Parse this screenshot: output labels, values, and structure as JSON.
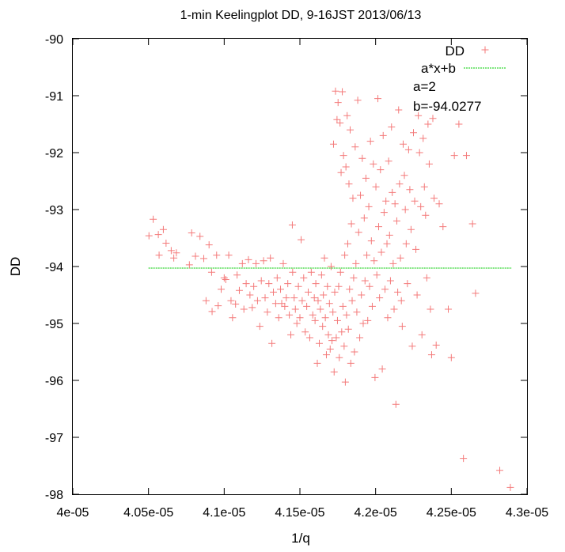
{
  "chart_data": {
    "type": "scatter",
    "title": "1-min Keelingplot DD, 9-16JST 2013/06/13",
    "xlabel": "1/q",
    "ylabel": "DD",
    "xlim": [
      4e-05,
      4.3e-05
    ],
    "ylim": [
      -98,
      -90
    ],
    "xticks": [
      {
        "value": 4e-05,
        "label": "4e-05"
      },
      {
        "value": 4.05e-05,
        "label": "4.05e-05"
      },
      {
        "value": 4.1e-05,
        "label": "4.1e-05"
      },
      {
        "value": 4.15e-05,
        "label": "4.15e-05"
      },
      {
        "value": 4.2e-05,
        "label": "4.2e-05"
      },
      {
        "value": 4.25e-05,
        "label": "4.25e-05"
      },
      {
        "value": 4.3e-05,
        "label": "4.3e-05"
      }
    ],
    "yticks": [
      {
        "value": -90,
        "label": "-90"
      },
      {
        "value": -91,
        "label": "-91"
      },
      {
        "value": -92,
        "label": "-92"
      },
      {
        "value": -93,
        "label": "-93"
      },
      {
        "value": -94,
        "label": "-94"
      },
      {
        "value": -95,
        "label": "-95"
      },
      {
        "value": -96,
        "label": "-96"
      },
      {
        "value": -97,
        "label": "-97"
      },
      {
        "value": -98,
        "label": "-98"
      }
    ],
    "grid": false,
    "legend_position": "top-right",
    "annotations": [
      "a=2",
      "b=-94.0277"
    ],
    "series": [
      {
        "name": "DD",
        "kind": "points",
        "marker": "plus",
        "color": "#f47a7a",
        "points": [
          [
            4.0503e-05,
            -93.46
          ],
          [
            4.0531e-05,
            -93.17
          ],
          [
            4.0565e-05,
            -93.44
          ],
          [
            4.0598e-05,
            -93.35
          ],
          [
            4.057e-05,
            -93.8
          ],
          [
            4.0616e-05,
            -93.59
          ],
          [
            4.065e-05,
            -93.72
          ],
          [
            4.0667e-05,
            -93.85
          ],
          [
            4.0684e-05,
            -93.76
          ],
          [
            4.0785e-05,
            -93.41
          ],
          [
            4.081e-05,
            -93.82
          ],
          [
            4.084e-05,
            -93.47
          ],
          [
            4.077e-05,
            -93.97
          ],
          [
            4.0865e-05,
            -93.86
          ],
          [
            4.09e-05,
            -93.62
          ],
          [
            4.0917e-05,
            -94.1
          ],
          [
            4.095e-05,
            -93.8
          ],
          [
            4.088e-05,
            -94.6
          ],
          [
            4.092e-05,
            -94.79
          ],
          [
            4.096e-05,
            -94.69
          ],
          [
            4.098e-05,
            -94.4
          ],
          [
            4.1e-05,
            -94.2
          ],
          [
            4.101e-05,
            -94.23
          ],
          [
            4.103e-05,
            -93.8
          ],
          [
            4.1045e-05,
            -94.6
          ],
          [
            4.1055e-05,
            -94.9
          ],
          [
            4.1075e-05,
            -94.66
          ],
          [
            4.1085e-05,
            -94.15
          ],
          [
            4.11e-05,
            -94.42
          ],
          [
            4.112e-05,
            -93.95
          ],
          [
            4.113e-05,
            -94.75
          ],
          [
            4.1145e-05,
            -94.3
          ],
          [
            4.116e-05,
            -93.88
          ],
          [
            4.117e-05,
            -94.5
          ],
          [
            4.1185e-05,
            -94.72
          ],
          [
            4.1195e-05,
            -94.35
          ],
          [
            4.121e-05,
            -93.95
          ],
          [
            4.122e-05,
            -94.6
          ],
          [
            4.1235e-05,
            -95.05
          ],
          [
            4.1245e-05,
            -94.25
          ],
          [
            4.126e-05,
            -93.9
          ],
          [
            4.127e-05,
            -94.55
          ],
          [
            4.1285e-05,
            -94.8
          ],
          [
            4.1295e-05,
            -94.3
          ],
          [
            4.1305e-05,
            -93.85
          ],
          [
            4.1315e-05,
            -95.35
          ],
          [
            4.1325e-05,
            -94.45
          ],
          [
            4.134e-05,
            -94.65
          ],
          [
            4.135e-05,
            -94.2
          ],
          [
            4.136e-05,
            -94.9
          ],
          [
            4.1372e-05,
            -94.4
          ],
          [
            4.138e-05,
            -94.65
          ],
          [
            4.139e-05,
            -93.95
          ],
          [
            4.14e-05,
            -94.7
          ],
          [
            4.141e-05,
            -94.55
          ],
          [
            4.142e-05,
            -94.3
          ],
          [
            4.143e-05,
            -94.85
          ],
          [
            4.144e-05,
            -95.2
          ],
          [
            4.145e-05,
            -93.27
          ],
          [
            4.1452e-05,
            -94.1
          ],
          [
            4.1462e-05,
            -94.55
          ],
          [
            4.147e-05,
            -94.75
          ],
          [
            4.148e-05,
            -95.0
          ],
          [
            4.149e-05,
            -94.35
          ],
          [
            4.15e-05,
            -94.9
          ],
          [
            4.1508e-05,
            -93.53
          ],
          [
            4.1515e-05,
            -94.6
          ],
          [
            4.1525e-05,
            -94.2
          ],
          [
            4.1535e-05,
            -95.15
          ],
          [
            4.1545e-05,
            -94.7
          ],
          [
            4.1555e-05,
            -94.45
          ],
          [
            4.1565e-05,
            -95.25
          ],
          [
            4.1575e-05,
            -94.1
          ],
          [
            4.1585e-05,
            -94.85
          ],
          [
            4.1595e-05,
            -94.55
          ],
          [
            4.16e-05,
            -94.95
          ],
          [
            4.1605e-05,
            -94.3
          ],
          [
            4.1615e-05,
            -95.7
          ],
          [
            4.162e-05,
            -94.6
          ],
          [
            4.1628e-05,
            -95.35
          ],
          [
            4.1635e-05,
            -94.75
          ],
          [
            4.1643e-05,
            -94.15
          ],
          [
            4.165e-05,
            -95.05
          ],
          [
            4.1655e-05,
            -94.5
          ],
          [
            4.1662e-05,
            -93.85
          ],
          [
            4.1668e-05,
            -94.9
          ],
          [
            4.1675e-05,
            -95.55
          ],
          [
            4.1682e-05,
            -94.35
          ],
          [
            4.1688e-05,
            -95.2
          ],
          [
            4.1695e-05,
            -94.65
          ],
          [
            4.17e-05,
            -95.45
          ],
          [
            4.1706e-05,
            -94.0
          ],
          [
            4.1712e-05,
            -95.3
          ],
          [
            4.1718e-05,
            -94.8
          ],
          [
            4.1722e-05,
            -91.85
          ],
          [
            4.1726e-05,
            -95.85
          ],
          [
            4.173e-05,
            -94.45
          ],
          [
            4.1735e-05,
            -90.92
          ],
          [
            4.174e-05,
            -95.25
          ],
          [
            4.1745e-05,
            -91.42
          ],
          [
            4.1748e-05,
            -94.95
          ],
          [
            4.1752e-05,
            -91.12
          ],
          [
            4.1756e-05,
            -94.35
          ],
          [
            4.176e-05,
            -95.6
          ],
          [
            4.1765e-05,
            -91.48
          ],
          [
            4.1768e-05,
            -94.1
          ],
          [
            4.1772e-05,
            -92.35
          ],
          [
            4.1776e-05,
            -95.15
          ],
          [
            4.178e-05,
            -90.93
          ],
          [
            4.1784e-05,
            -94.7
          ],
          [
            4.1788e-05,
            -92.05
          ],
          [
            4.1792e-05,
            -95.4
          ],
          [
            4.1796e-05,
            -93.8
          ],
          [
            4.18e-05,
            -96.03
          ],
          [
            4.1804e-05,
            -92.25
          ],
          [
            4.1808e-05,
            -94.85
          ],
          [
            4.1812e-05,
            -91.35
          ],
          [
            4.1816e-05,
            -93.6
          ],
          [
            4.182e-05,
            -95.1
          ],
          [
            4.1824e-05,
            -92.55
          ],
          [
            4.1828e-05,
            -94.4
          ],
          [
            4.1832e-05,
            -91.6
          ],
          [
            4.1836e-05,
            -95.7
          ],
          [
            4.184e-05,
            -93.25
          ],
          [
            4.1845e-05,
            -94.6
          ],
          [
            4.185e-05,
            -92.8
          ],
          [
            4.1855e-05,
            -94.2
          ],
          [
            4.186e-05,
            -95.5
          ],
          [
            4.1865e-05,
            -91.9
          ],
          [
            4.187e-05,
            -93.95
          ],
          [
            4.1876e-05,
            -94.8
          ],
          [
            4.1882e-05,
            -91.08
          ],
          [
            4.1888e-05,
            -93.4
          ],
          [
            4.1895e-05,
            -95.25
          ],
          [
            4.19e-05,
            -92.75
          ],
          [
            4.1906e-05,
            -94.5
          ],
          [
            4.1912e-05,
            -92.1
          ],
          [
            4.1918e-05,
            -95.0
          ],
          [
            4.1925e-05,
            -93.15
          ],
          [
            4.193e-05,
            -94.25
          ],
          [
            4.1936e-05,
            -92.45
          ],
          [
            4.1942e-05,
            -93.8
          ],
          [
            4.1948e-05,
            -94.95
          ],
          [
            4.1955e-05,
            -92.95
          ],
          [
            4.196e-05,
            -94.35
          ],
          [
            4.1966e-05,
            -91.8
          ],
          [
            4.1972e-05,
            -93.55
          ],
          [
            4.1978e-05,
            -94.7
          ],
          [
            4.1985e-05,
            -92.2
          ],
          [
            4.199e-05,
            -93.9
          ],
          [
            4.1996e-05,
            -95.95
          ],
          [
            4.2002e-05,
            -92.6
          ],
          [
            4.2008e-05,
            -94.15
          ],
          [
            4.2015e-05,
            -91.05
          ],
          [
            4.202e-05,
            -93.3
          ],
          [
            4.2026e-05,
            -94.55
          ],
          [
            4.2032e-05,
            -92.3
          ],
          [
            4.2038e-05,
            -93.75
          ],
          [
            4.2044e-05,
            -95.8
          ],
          [
            4.205e-05,
            -91.7
          ],
          [
            4.2056e-05,
            -93.05
          ],
          [
            4.2062e-05,
            -94.4
          ],
          [
            4.2068e-05,
            -92.85
          ],
          [
            4.2075e-05,
            -93.6
          ],
          [
            4.208e-05,
            -94.9
          ],
          [
            4.2086e-05,
            -92.15
          ],
          [
            4.2092e-05,
            -93.45
          ],
          [
            4.2098e-05,
            -94.25
          ],
          [
            4.2105e-05,
            -91.55
          ],
          [
            4.211e-05,
            -92.7
          ],
          [
            4.2116e-05,
            -93.95
          ],
          [
            4.2122e-05,
            -94.75
          ],
          [
            4.2128e-05,
            -92.9
          ],
          [
            4.2134e-05,
            -96.42
          ],
          [
            4.214e-05,
            -93.2
          ],
          [
            4.2146e-05,
            -94.45
          ],
          [
            4.2152e-05,
            -91.25
          ],
          [
            4.2158e-05,
            -92.55
          ],
          [
            4.2164e-05,
            -93.85
          ],
          [
            4.217e-05,
            -94.6
          ],
          [
            4.2176e-05,
            -95.05
          ],
          [
            4.2182e-05,
            -91.85
          ],
          [
            4.219e-05,
            -92.4
          ],
          [
            4.2196e-05,
            -93.0
          ],
          [
            4.2202e-05,
            -93.6
          ],
          [
            4.221e-05,
            -94.3
          ],
          [
            4.2218e-05,
            -91.95
          ],
          [
            4.2226e-05,
            -92.65
          ],
          [
            4.2234e-05,
            -93.35
          ],
          [
            4.2242e-05,
            -95.4
          ],
          [
            4.225e-05,
            -91.65
          ],
          [
            4.2258e-05,
            -92.85
          ],
          [
            4.2266e-05,
            -93.7
          ],
          [
            4.2274e-05,
            -94.5
          ],
          [
            4.2282e-05,
            -91.35
          ],
          [
            4.229e-05,
            -92.0
          ],
          [
            4.2298e-05,
            -92.95
          ],
          [
            4.2306e-05,
            -95.2
          ],
          [
            4.2314e-05,
            -91.75
          ],
          [
            4.2322e-05,
            -92.6
          ],
          [
            4.233e-05,
            -93.1
          ],
          [
            4.2338e-05,
            -94.2
          ],
          [
            4.2346e-05,
            -91.5
          ],
          [
            4.2354e-05,
            -92.2
          ],
          [
            4.2362e-05,
            -94.75
          ],
          [
            4.237e-05,
            -95.55
          ],
          [
            4.2378e-05,
            -91.4
          ],
          [
            4.2386e-05,
            -92.8
          ],
          [
            4.24e-05,
            -95.38
          ],
          [
            4.242e-05,
            -92.9
          ],
          [
            4.2445e-05,
            -93.3
          ],
          [
            4.248e-05,
            -94.75
          ],
          [
            4.25e-05,
            -95.6
          ],
          [
            4.252e-05,
            -92.05
          ],
          [
            4.255e-05,
            -91.5
          ],
          [
            4.258e-05,
            -97.37
          ],
          [
            4.26e-05,
            -92.05
          ],
          [
            4.264e-05,
            -93.25
          ],
          [
            4.266e-05,
            -94.47
          ],
          [
            4.282e-05,
            -97.58
          ],
          [
            4.289e-05,
            -97.88
          ]
        ]
      },
      {
        "name": "a*x+b",
        "kind": "line",
        "color": "#00cc00",
        "points": [
          [
            4.05e-05,
            -94.0277
          ],
          [
            4.29e-05,
            -94.0277
          ]
        ]
      }
    ]
  }
}
